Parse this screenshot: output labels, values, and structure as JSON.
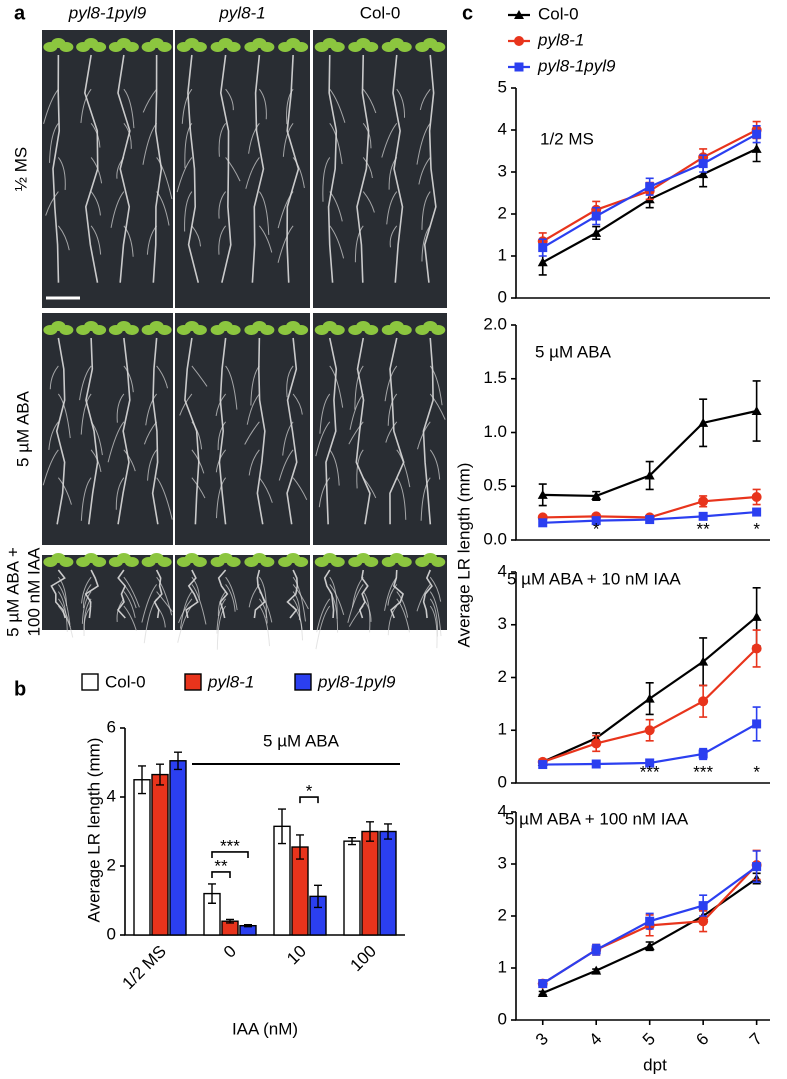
{
  "panel_a": {
    "label": "a",
    "columns": [
      "pyl8-1pyl9",
      "pyl8-1",
      "Col-0"
    ],
    "rows": [
      [
        "½ MS"
      ],
      [
        "5 µM ABA"
      ],
      [
        "5 µM ABA +",
        "100 nM IAA"
      ]
    ]
  },
  "chart_data": [
    {
      "type": "bar",
      "panel": "b",
      "ylabel": "Average LR length (mm)",
      "xlabel": "IAA (nM)",
      "group_label": "5 µM ABA",
      "categories": [
        "1/2 MS",
        "0",
        "10",
        "100"
      ],
      "ylim": [
        0,
        6
      ],
      "yticks": [
        0,
        2,
        4,
        6
      ],
      "series": [
        {
          "name": "Col-0",
          "color": "#ffffff",
          "values": [
            4.5,
            1.2,
            3.15,
            2.72
          ],
          "errors": [
            0.4,
            0.28,
            0.5,
            0.1
          ]
        },
        {
          "name": "pyl8-1",
          "color": "#e8341c",
          "values": [
            4.65,
            0.4,
            2.55,
            3.0
          ],
          "errors": [
            0.3,
            0.05,
            0.35,
            0.28
          ]
        },
        {
          "name": "pyl8-1pyl9",
          "color": "#2b3ff0",
          "values": [
            5.05,
            0.27,
            1.12,
            3.0
          ],
          "errors": [
            0.25,
            0.03,
            0.32,
            0.22
          ]
        }
      ],
      "annotations": [
        {
          "text": "**",
          "category": 1,
          "series": [
            0,
            1
          ]
        },
        {
          "text": "***",
          "category": 1,
          "series": [
            0,
            2
          ]
        },
        {
          "text": "*",
          "category": 2,
          "series": [
            1,
            2
          ]
        }
      ]
    },
    {
      "type": "line",
      "panel": "c",
      "ylabel": "Average LR length (mm)",
      "xlabel": "dpt",
      "x": [
        3,
        4,
        5,
        6,
        7
      ],
      "xlim": [
        2.5,
        7.25
      ],
      "xticks": [
        3,
        4,
        5,
        6,
        7
      ],
      "legend": [
        {
          "name": "Col-0",
          "color": "#000000",
          "marker": "triangle"
        },
        {
          "name": "pyl8-1",
          "color": "#e8341c",
          "marker": "circle"
        },
        {
          "name": "pyl8-1pyl9",
          "color": "#2b3ff0",
          "marker": "square"
        }
      ],
      "panels": [
        {
          "title": "1/2 MS",
          "ylim": [
            0,
            5
          ],
          "yticks": [
            0,
            1,
            2,
            3,
            4,
            5
          ],
          "series": [
            {
              "values": [
                0.85,
                1.55,
                2.35,
                2.95,
                3.55
              ],
              "errors": [
                0.3,
                0.15,
                0.2,
                0.3,
                0.3
              ]
            },
            {
              "values": [
                1.35,
                2.1,
                2.55,
                3.35,
                4.0
              ],
              "errors": [
                0.2,
                0.2,
                0.2,
                0.2,
                0.2
              ]
            },
            {
              "values": [
                1.2,
                1.95,
                2.65,
                3.2,
                3.9
              ],
              "errors": [
                0.2,
                0.2,
                0.2,
                0.2,
                0.2
              ]
            }
          ],
          "annotations": []
        },
        {
          "title": "5 µM ABA",
          "ylim": [
            0,
            2
          ],
          "yticks": [
            {
              "value": 0,
              "label": "0.0"
            },
            0.5,
            {
              "value": 1,
              "label": "1.0"
            },
            1.5,
            {
              "value": 2,
              "label": "2.0"
            }
          ],
          "series": [
            {
              "values": [
                0.42,
                0.41,
                0.6,
                1.09,
                1.2
              ],
              "errors": [
                0.1,
                0.04,
                0.13,
                0.22,
                0.28
              ]
            },
            {
              "values": [
                0.21,
                0.22,
                0.21,
                0.36,
                0.4
              ],
              "errors": [
                0.02,
                0.02,
                0.02,
                0.05,
                0.07
              ]
            },
            {
              "values": [
                0.16,
                0.18,
                0.19,
                0.22,
                0.26
              ],
              "errors": [
                0.02,
                0.02,
                0.02,
                0.02,
                0.02
              ]
            }
          ],
          "annotations": [
            {
              "x": 4,
              "text": "*"
            },
            {
              "x": 6,
              "text": "**"
            },
            {
              "x": 7,
              "text": "*"
            }
          ]
        },
        {
          "title": "5 µM ABA + 10 nM IAA",
          "ylim": [
            0,
            4
          ],
          "yticks": [
            0,
            1,
            2,
            3,
            4
          ],
          "series": [
            {
              "values": [
                0.4,
                0.85,
                1.6,
                2.3,
                3.15
              ],
              "errors": [
                0.05,
                0.1,
                0.3,
                0.45,
                0.55
              ]
            },
            {
              "values": [
                0.4,
                0.75,
                1.0,
                1.55,
                2.55
              ],
              "errors": [
                0.05,
                0.15,
                0.2,
                0.3,
                0.35
              ]
            },
            {
              "values": [
                0.35,
                0.36,
                0.38,
                0.55,
                1.12
              ],
              "errors": [
                0.03,
                0.02,
                0.02,
                0.1,
                0.32
              ]
            }
          ],
          "annotations": [
            {
              "x": 5,
              "text": "***"
            },
            {
              "x": 6,
              "text": "***"
            },
            {
              "x": 7,
              "text": "*"
            }
          ]
        },
        {
          "title": "5 µM ABA + 100 nM IAA",
          "ylim": [
            0,
            4
          ],
          "yticks": [
            0,
            1,
            2,
            3,
            4
          ],
          "series": [
            {
              "values": [
                0.52,
                0.95,
                1.42,
                2.0,
                2.72
              ],
              "errors": [
                0.03,
                0.03,
                0.08,
                0.1,
                0.1
              ]
            },
            {
              "values": [
                0.7,
                1.35,
                1.82,
                1.9,
                2.98
              ],
              "errors": [
                0.05,
                0.1,
                0.2,
                0.2,
                0.28
              ]
            },
            {
              "values": [
                0.7,
                1.35,
                1.9,
                2.2,
                2.95
              ],
              "errors": [
                0.05,
                0.1,
                0.15,
                0.2,
                0.3
              ]
            }
          ],
          "annotations": []
        }
      ]
    }
  ]
}
